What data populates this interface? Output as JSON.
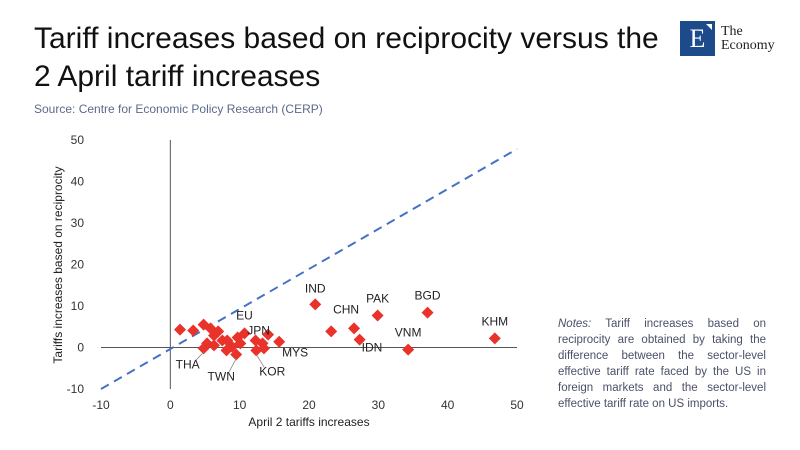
{
  "title": "Tariff increases based on reciprocity versus the 2 April tariff increases",
  "source": "Source: Centre for Economic Policy Research (CERP)",
  "logo": {
    "letter": "E",
    "line1": "The",
    "line2": "Economy",
    "color": "#1d4a8a"
  },
  "notes": {
    "label": "Notes:",
    "text": " Tariff increases based on reciprocity are obtained by taking the difference between the sector-level effective tariff rate faced by the US in foreign markets and the sector-level effective tariff rate on US imports."
  },
  "chart_data": {
    "type": "scatter",
    "xlabel": "April 2 tariffs increases",
    "ylabel": "Tariffs increases based on reciprocity",
    "xlim": [
      -10,
      50
    ],
    "ylim": [
      -10,
      50
    ],
    "xticks": [
      "-10",
      "0",
      "10",
      "20",
      "30",
      "40",
      "50"
    ],
    "yticks": [
      "-10",
      "0",
      "10",
      "20",
      "30",
      "40",
      "50"
    ],
    "grid": false,
    "marker_color": "#e8322a",
    "reference_line": {
      "style": "dashed",
      "color": "#4472c4",
      "from": [
        -10,
        -10
      ],
      "to": [
        50,
        50
      ]
    },
    "labeled_points": [
      {
        "label": "IND",
        "x": 20.9,
        "y": 10.4
      },
      {
        "label": "CHN",
        "x": 26.5,
        "y": 4.6
      },
      {
        "label": "PAK",
        "x": 29.9,
        "y": 7.7
      },
      {
        "label": "BGD",
        "x": 37.1,
        "y": 8.4
      },
      {
        "label": "IDN",
        "x": 27.3,
        "y": 1.9
      },
      {
        "label": "VNM",
        "x": 34.3,
        "y": -0.5
      },
      {
        "label": "KHM",
        "x": 46.8,
        "y": 2.2
      },
      {
        "label": "MYS",
        "x": 15.7,
        "y": 1.4
      },
      {
        "label": "EU",
        "x": 10.7,
        "y": 3.4
      },
      {
        "label": "JPN",
        "x": 13.3,
        "y": 1.0
      },
      {
        "label": "THA",
        "x": 4.8,
        "y": -0.2
      },
      {
        "label": "TWN",
        "x": 9.5,
        "y": -1.7
      },
      {
        "label": "KOR",
        "x": 12.4,
        "y": -0.7
      }
    ],
    "points": [
      {
        "x": 1.4,
        "y": 4.3
      },
      {
        "x": 3.3,
        "y": 4.1
      },
      {
        "x": 4.8,
        "y": 5.5
      },
      {
        "x": 5.8,
        "y": 4.6
      },
      {
        "x": 6.9,
        "y": 3.9
      },
      {
        "x": 6.3,
        "y": 2.9
      },
      {
        "x": 5.3,
        "y": 1.0
      },
      {
        "x": 6.3,
        "y": 0.5
      },
      {
        "x": 7.5,
        "y": 1.7
      },
      {
        "x": 8.1,
        "y": -0.7
      },
      {
        "x": 8.9,
        "y": 0.2
      },
      {
        "x": 10.1,
        "y": 1.0
      },
      {
        "x": 12.3,
        "y": 1.7
      },
      {
        "x": 14.1,
        "y": 3.1
      },
      {
        "x": 13.5,
        "y": -0.2
      },
      {
        "x": 8.2,
        "y": 1.7
      },
      {
        "x": 9.7,
        "y": 2.4
      },
      {
        "x": 23.2,
        "y": 3.9
      }
    ]
  }
}
